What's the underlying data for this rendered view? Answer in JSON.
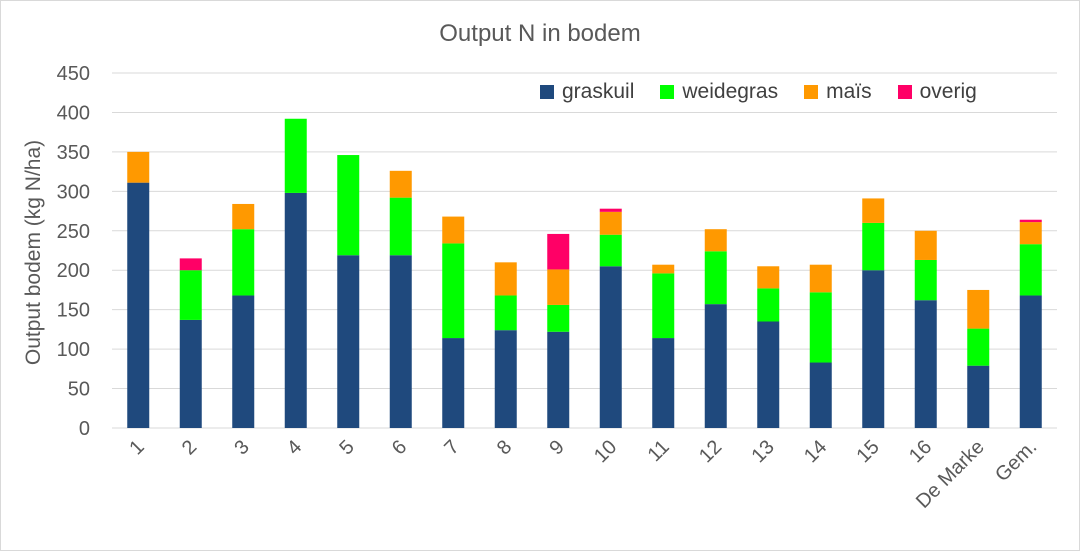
{
  "chart_data": {
    "type": "bar",
    "stacked": true,
    "title": "Output N in bodem",
    "ylabel": "Output bodem (kg N/ha)",
    "xlabel": "",
    "ylim": [
      0,
      450
    ],
    "yticks": [
      0,
      50,
      100,
      150,
      200,
      250,
      300,
      350,
      400,
      450
    ],
    "grid": true,
    "legend_position": "top-right",
    "categories": [
      "1",
      "2",
      "3",
      "4",
      "5",
      "6",
      "7",
      "8",
      "9",
      "10",
      "11",
      "12",
      "13",
      "14",
      "15",
      "16",
      "De Marke",
      "Gem."
    ],
    "series": [
      {
        "name": "graskuil",
        "color": "#1f497d",
        "values": [
          311,
          137,
          168,
          298,
          219,
          219,
          114,
          124,
          122,
          205,
          114,
          157,
          135,
          83,
          200,
          162,
          79,
          168
        ]
      },
      {
        "name": "weidegras",
        "color": "#00ff00",
        "values": [
          0,
          63,
          84,
          94,
          127,
          73,
          120,
          44,
          34,
          40,
          82,
          67,
          42,
          89,
          60,
          51,
          47,
          65
        ]
      },
      {
        "name": "maïs",
        "color": "#ff9900",
        "values": [
          39,
          0,
          32,
          0,
          0,
          34,
          34,
          42,
          45,
          29,
          11,
          28,
          28,
          35,
          31,
          37,
          49,
          28
        ]
      },
      {
        "name": "overig",
        "color": "#ff0066",
        "values": [
          0,
          15,
          0,
          0,
          0,
          0,
          0,
          0,
          45,
          4,
          0,
          0,
          0,
          0,
          0,
          0,
          0,
          3
        ]
      }
    ]
  }
}
